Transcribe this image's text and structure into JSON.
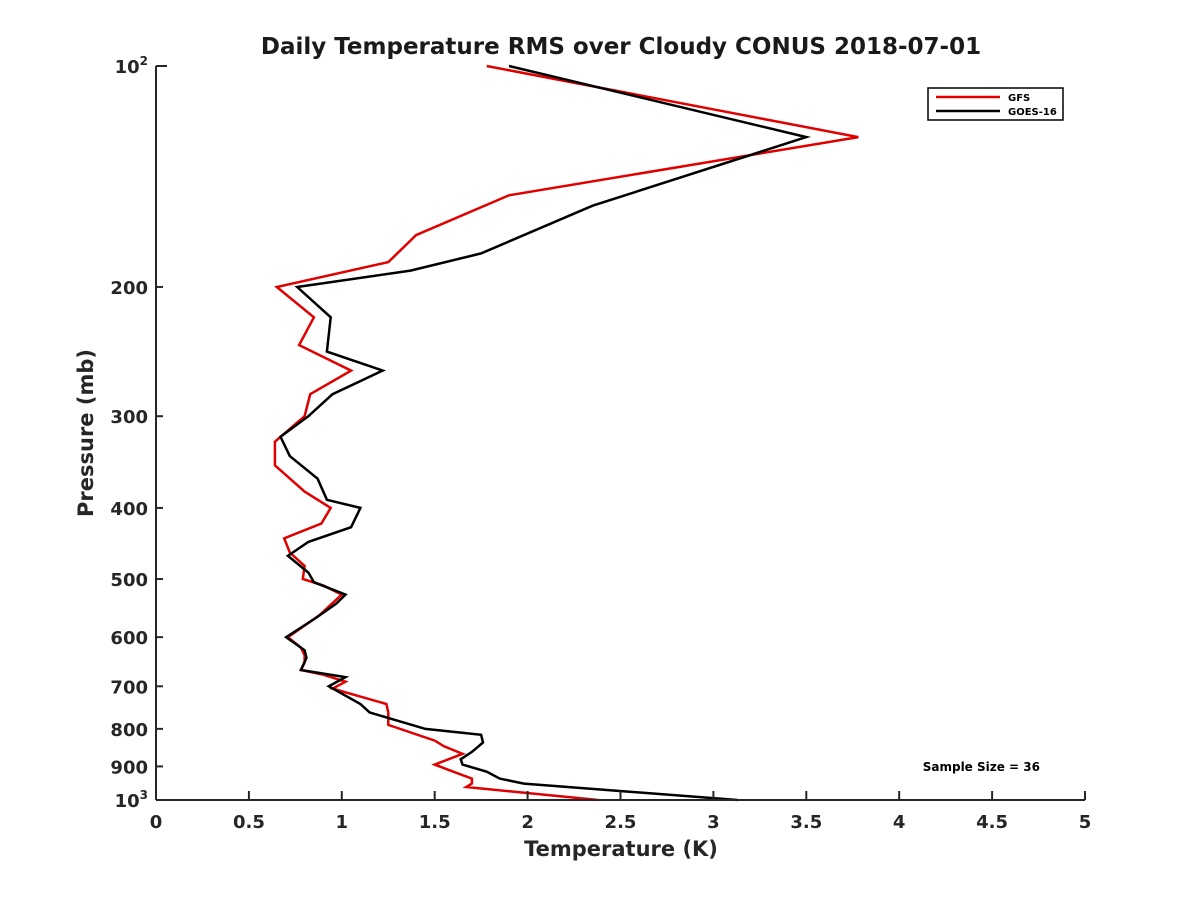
{
  "chart_data": {
    "type": "line",
    "title": "Daily Temperature RMS over Cloudy CONUS 2018-07-01",
    "xlabel": "Temperature (K)",
    "ylabel": "Pressure (mb)",
    "xlim": [
      0,
      5
    ],
    "ylim": [
      100,
      1000
    ],
    "y_scale": "log",
    "y_reversed": true,
    "x_ticks": [
      0,
      0.5,
      1,
      1.5,
      2,
      2.5,
      3,
      3.5,
      4,
      4.5,
      5
    ],
    "x_tick_labels": [
      "0",
      "0.5",
      "1",
      "1.5",
      "2",
      "2.5",
      "3",
      "3.5",
      "4",
      "4.5",
      "5"
    ],
    "y_ticks": [
      {
        "value": 100,
        "base": "10",
        "exp": "2",
        "label": ""
      },
      {
        "value": 200,
        "label": "200"
      },
      {
        "value": 300,
        "label": "300"
      },
      {
        "value": 400,
        "label": "400"
      },
      {
        "value": 500,
        "label": "500"
      },
      {
        "value": 600,
        "label": "600"
      },
      {
        "value": 700,
        "label": "700"
      },
      {
        "value": 800,
        "label": "800"
      },
      {
        "value": 900,
        "label": "900"
      },
      {
        "value": 1000,
        "base": "10",
        "exp": "3",
        "label": ""
      }
    ],
    "legend_position": "top-right",
    "grid": false,
    "annotation": "Sample Size = 36",
    "series": [
      {
        "name": "GFS",
        "color": "#e00000",
        "points": [
          [
            1.78,
            100
          ],
          [
            3.78,
            125
          ],
          [
            1.9,
            150
          ],
          [
            1.4,
            170
          ],
          [
            1.25,
            185
          ],
          [
            0.65,
            200
          ],
          [
            0.85,
            220
          ],
          [
            0.77,
            240
          ],
          [
            1.05,
            260
          ],
          [
            0.83,
            280
          ],
          [
            0.8,
            300
          ],
          [
            0.64,
            325
          ],
          [
            0.64,
            350
          ],
          [
            0.8,
            380
          ],
          [
            0.94,
            400
          ],
          [
            0.89,
            420
          ],
          [
            0.69,
            440
          ],
          [
            0.72,
            460
          ],
          [
            0.8,
            480
          ],
          [
            0.79,
            500
          ],
          [
            0.9,
            510
          ],
          [
            1.0,
            525
          ],
          [
            0.88,
            560
          ],
          [
            0.71,
            600
          ],
          [
            0.78,
            620
          ],
          [
            0.8,
            635
          ],
          [
            0.8,
            650
          ],
          [
            0.78,
            665
          ],
          [
            0.9,
            675
          ],
          [
            1.02,
            690
          ],
          [
            0.95,
            705
          ],
          [
            1.24,
            740
          ],
          [
            1.25,
            760
          ],
          [
            1.25,
            790
          ],
          [
            1.5,
            830
          ],
          [
            1.55,
            845
          ],
          [
            1.65,
            865
          ],
          [
            1.5,
            895
          ],
          [
            1.6,
            915
          ],
          [
            1.7,
            935
          ],
          [
            1.7,
            950
          ],
          [
            1.67,
            960
          ],
          [
            2.38,
            1000
          ]
        ]
      },
      {
        "name": "GOES-16",
        "color": "#000000",
        "points": [
          [
            1.9,
            100
          ],
          [
            3.5,
            125
          ],
          [
            2.35,
            155
          ],
          [
            1.75,
            180
          ],
          [
            1.37,
            190
          ],
          [
            0.76,
            200
          ],
          [
            0.94,
            220
          ],
          [
            0.92,
            245
          ],
          [
            1.22,
            260
          ],
          [
            0.95,
            280
          ],
          [
            0.82,
            300
          ],
          [
            0.67,
            320
          ],
          [
            0.72,
            340
          ],
          [
            0.87,
            365
          ],
          [
            0.92,
            390
          ],
          [
            1.1,
            400
          ],
          [
            1.05,
            425
          ],
          [
            0.82,
            445
          ],
          [
            0.71,
            465
          ],
          [
            0.82,
            490
          ],
          [
            0.85,
            505
          ],
          [
            1.02,
            525
          ],
          [
            0.97,
            540
          ],
          [
            0.86,
            565
          ],
          [
            0.7,
            600
          ],
          [
            0.8,
            625
          ],
          [
            0.81,
            640
          ],
          [
            0.78,
            665
          ],
          [
            1.02,
            680
          ],
          [
            0.93,
            700
          ],
          [
            1.1,
            740
          ],
          [
            1.15,
            760
          ],
          [
            1.45,
            800
          ],
          [
            1.75,
            815
          ],
          [
            1.76,
            835
          ],
          [
            1.7,
            860
          ],
          [
            1.64,
            880
          ],
          [
            1.65,
            895
          ],
          [
            1.78,
            915
          ],
          [
            1.85,
            935
          ],
          [
            1.98,
            950
          ],
          [
            3.13,
            1000
          ]
        ]
      }
    ]
  }
}
